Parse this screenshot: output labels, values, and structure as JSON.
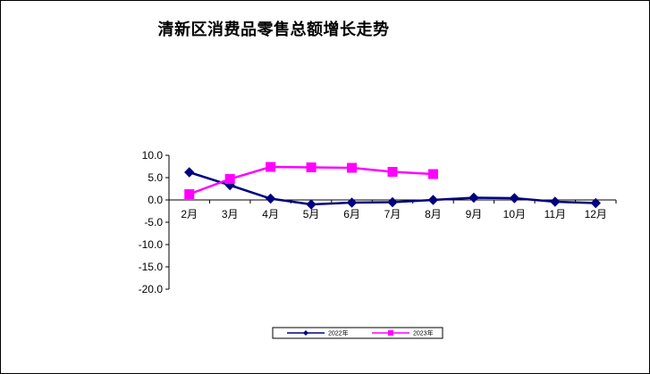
{
  "chart_data": {
    "type": "line",
    "title": "清新区消费品零售总额增长走势",
    "xlabel": "",
    "ylabel": "",
    "categories": [
      "2月",
      "3月",
      "4月",
      "5月",
      "6月",
      "7月",
      "8月",
      "9月",
      "10月",
      "11月",
      "12月"
    ],
    "y_ticks": [
      "10.0",
      "5.0",
      "0.0",
      "-5.0",
      "-10.0",
      "-15.0",
      "-20.0"
    ],
    "ylim": [
      -20,
      10
    ],
    "grid": false,
    "legend_position": "bottom",
    "series": [
      {
        "name": "2022年",
        "color": "#000080",
        "marker": "diamond",
        "values": [
          6.2,
          3.3,
          0.3,
          -1.0,
          -0.6,
          -0.5,
          0.0,
          0.5,
          0.4,
          -0.4,
          -0.7
        ]
      },
      {
        "name": "2023年",
        "color": "#FF00FF",
        "marker": "square",
        "values": [
          1.3,
          4.7,
          7.4,
          7.3,
          7.2,
          6.3,
          5.8,
          null,
          null,
          null,
          null
        ]
      }
    ]
  }
}
